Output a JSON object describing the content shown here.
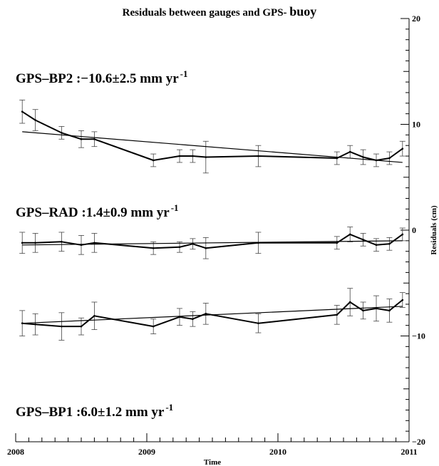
{
  "chart_data": {
    "type": "line",
    "title_main": "Residuals between gauges and GPS- ",
    "title_tail": "buoy",
    "xlabel": "Time",
    "ylabel": "Residuals (cm)",
    "xlim": [
      2008,
      2011
    ],
    "ylim": [
      -20,
      20
    ],
    "x_ticks": [
      2008,
      2009,
      2010,
      2011
    ],
    "y_ticks": [
      -20,
      -10,
      0,
      10,
      20
    ],
    "y_tick_labels": [
      "−20",
      "−10",
      "0",
      "10",
      "20"
    ],
    "y_axis_side": "right",
    "grid": false,
    "series": [
      {
        "annotation": "GPS–BP2 :−10.6±2.5 mm yr",
        "annotation_sup": "-1",
        "points": [
          [
            2008.05,
            11.2,
            1.1
          ],
          [
            2008.15,
            10.4,
            1.0
          ],
          [
            2008.35,
            9.2,
            0.6
          ],
          [
            2008.5,
            8.6,
            0.8
          ],
          [
            2008.6,
            8.6,
            0.7
          ],
          [
            2009.05,
            6.6,
            0.6
          ],
          [
            2009.25,
            7.0,
            0.6
          ],
          [
            2009.35,
            7.0,
            0.6
          ],
          [
            2009.45,
            6.9,
            1.5
          ],
          [
            2009.85,
            7.0,
            1.0
          ],
          [
            2010.45,
            6.8,
            0.6
          ],
          [
            2010.55,
            7.4,
            0.6
          ],
          [
            2010.65,
            6.9,
            0.7
          ],
          [
            2010.75,
            6.6,
            0.6
          ],
          [
            2010.85,
            6.8,
            0.6
          ],
          [
            2010.95,
            7.7,
            0.7
          ]
        ],
        "trend": [
          [
            2008.05,
            9.3
          ],
          [
            2010.95,
            6.4
          ]
        ]
      },
      {
        "annotation": "GPS–RAD :1.4±0.9 mm yr",
        "annotation_sup": "-1",
        "points": [
          [
            2008.05,
            -1.2,
            1.0
          ],
          [
            2008.15,
            -1.2,
            0.9
          ],
          [
            2008.35,
            -1.1,
            0.9
          ],
          [
            2008.5,
            -1.4,
            0.9
          ],
          [
            2008.6,
            -1.2,
            0.9
          ],
          [
            2009.05,
            -1.7,
            0.6
          ],
          [
            2009.25,
            -1.6,
            0.5
          ],
          [
            2009.35,
            -1.3,
            0.5
          ],
          [
            2009.45,
            -1.7,
            1.0
          ],
          [
            2009.85,
            -1.2,
            1.0
          ],
          [
            2010.45,
            -1.2,
            0.6
          ],
          [
            2010.55,
            -0.4,
            0.7
          ],
          [
            2010.65,
            -0.9,
            0.6
          ],
          [
            2010.75,
            -1.4,
            0.6
          ],
          [
            2010.85,
            -1.3,
            0.6
          ],
          [
            2010.95,
            -0.4,
            0.6
          ]
        ],
        "trend": [
          [
            2008.05,
            -1.4
          ],
          [
            2010.95,
            -1.0
          ]
        ]
      },
      {
        "annotation": "GPS–BP1 :6.0±1.2 mm yr",
        "annotation_sup": "-1",
        "points": [
          [
            2008.05,
            -8.8,
            1.2
          ],
          [
            2008.15,
            -8.9,
            1.0
          ],
          [
            2008.35,
            -9.1,
            1.3
          ],
          [
            2008.5,
            -9.1,
            0.8
          ],
          [
            2008.6,
            -8.1,
            1.3
          ],
          [
            2009.05,
            -9.1,
            0.7
          ],
          [
            2009.25,
            -8.2,
            0.8
          ],
          [
            2009.35,
            -8.4,
            0.7
          ],
          [
            2009.45,
            -7.9,
            1.0
          ],
          [
            2009.85,
            -8.8,
            0.9
          ],
          [
            2010.45,
            -8.0,
            0.9
          ],
          [
            2010.55,
            -6.8,
            1.3
          ],
          [
            2010.65,
            -7.6,
            0.8
          ],
          [
            2010.75,
            -7.4,
            1.2
          ],
          [
            2010.85,
            -7.6,
            1.1
          ],
          [
            2010.95,
            -6.6,
            0.7
          ]
        ],
        "trend": [
          [
            2008.05,
            -8.8
          ],
          [
            2010.95,
            -7.2
          ]
        ]
      }
    ]
  }
}
